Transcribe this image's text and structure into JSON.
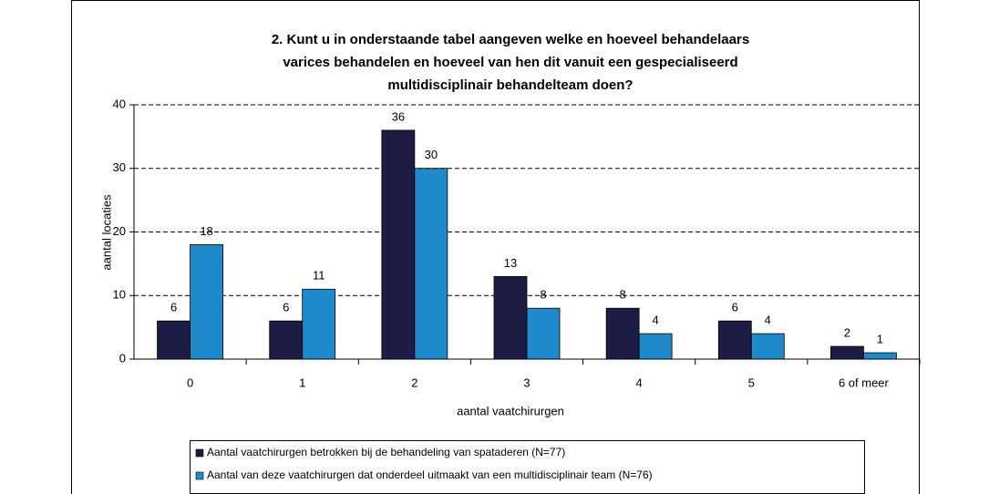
{
  "chart_data": {
    "type": "bar",
    "title": [
      "2. Kunt u in onderstaande tabel aangeven welke en hoeveel behandelaars",
      "varices behandelen en hoeveel van hen dit vanuit een gespecialiseerd",
      "multidisciplinair behandelteam doen?"
    ],
    "xlabel": "aantal vaatchirurgen",
    "ylabel": "aantal locaties",
    "categories": [
      "0",
      "1",
      "2",
      "3",
      "4",
      "5",
      "6 of meer"
    ],
    "series": [
      {
        "name": "Aantal vaatchirurgen betrokken bij de behandeling van spataderen (N=77)",
        "color": "#1c1c44",
        "values": [
          6,
          6,
          36,
          13,
          8,
          6,
          2
        ]
      },
      {
        "name": "Aantal van deze vaatchirurgen dat onderdeel uitmaakt van een multidisciplinair team (N=76)",
        "color": "#1f8acb",
        "values": [
          18,
          11,
          30,
          8,
          4,
          4,
          1
        ]
      }
    ],
    "ylim": [
      0,
      40
    ],
    "yticks": [
      0,
      10,
      20,
      30,
      40
    ],
    "grid": true
  }
}
